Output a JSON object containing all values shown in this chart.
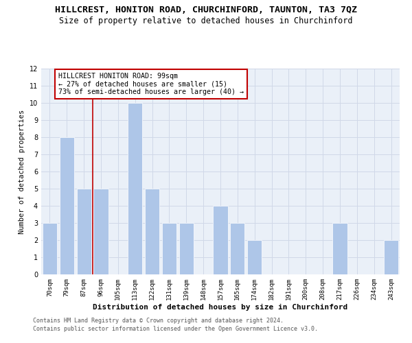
{
  "title": "HILLCREST, HONITON ROAD, CHURCHINFORD, TAUNTON, TA3 7QZ",
  "subtitle": "Size of property relative to detached houses in Churchinford",
  "xlabel": "Distribution of detached houses by size in Churchinford",
  "ylabel": "Number of detached properties",
  "categories": [
    "70sqm",
    "79sqm",
    "87sqm",
    "96sqm",
    "105sqm",
    "113sqm",
    "122sqm",
    "131sqm",
    "139sqm",
    "148sqm",
    "157sqm",
    "165sqm",
    "174sqm",
    "182sqm",
    "191sqm",
    "200sqm",
    "208sqm",
    "217sqm",
    "226sqm",
    "234sqm",
    "243sqm"
  ],
  "values": [
    3,
    8,
    5,
    5,
    0,
    10,
    5,
    3,
    3,
    0,
    4,
    3,
    2,
    0,
    0,
    0,
    0,
    3,
    0,
    0,
    2
  ],
  "bar_color": "#aec6e8",
  "highlight_color": "#c00000",
  "highlight_index": 3,
  "annotation_line1": "HILLCREST HONITON ROAD: 99sqm",
  "annotation_line2": "← 27% of detached houses are smaller (15)",
  "annotation_line3": "73% of semi-detached houses are larger (40) →",
  "ylim": [
    0,
    12
  ],
  "yticks": [
    0,
    1,
    2,
    3,
    4,
    5,
    6,
    7,
    8,
    9,
    10,
    11,
    12
  ],
  "grid_color": "#d0d8e8",
  "background_color": "#eaf0f8",
  "footer_line1": "Contains HM Land Registry data © Crown copyright and database right 2024.",
  "footer_line2": "Contains public sector information licensed under the Open Government Licence v3.0.",
  "title_fontsize": 9.5,
  "subtitle_fontsize": 8.5,
  "annotation_fontsize": 7.2,
  "tick_fontsize": 6.5,
  "ylabel_fontsize": 7.5,
  "xlabel_fontsize": 8,
  "footer_fontsize": 6
}
